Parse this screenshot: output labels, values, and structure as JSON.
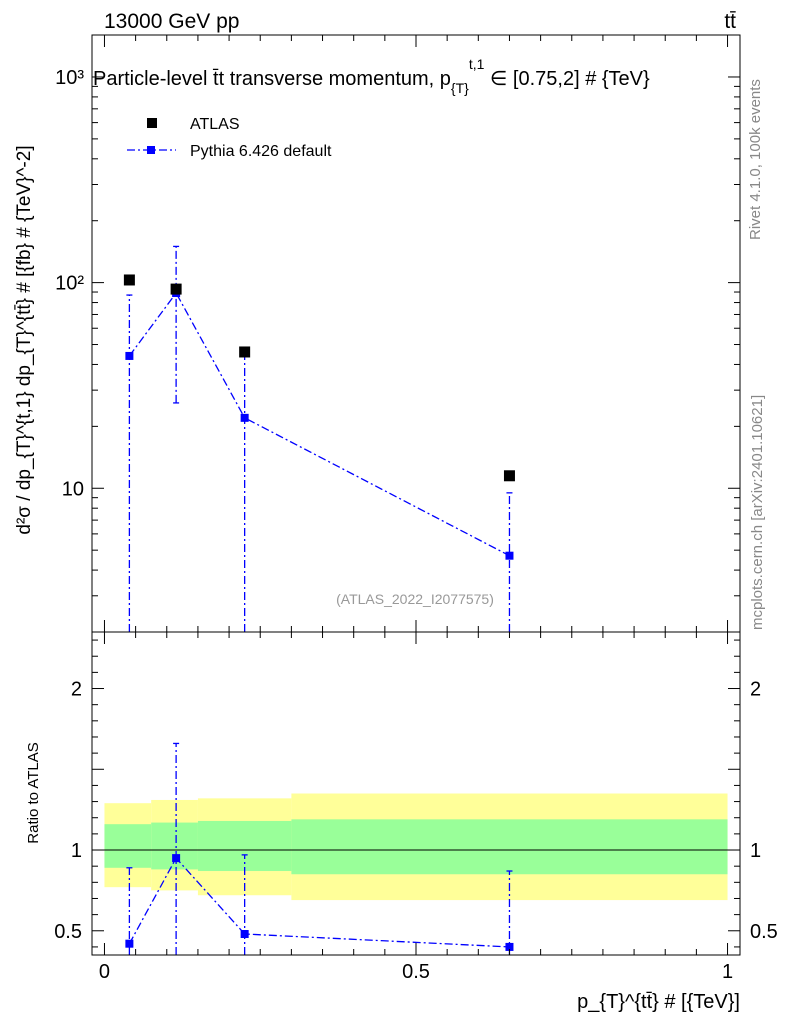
{
  "header": {
    "energy_label": "13000 GeV pp",
    "process_label": "tt̄"
  },
  "colors": {
    "mc": "#0000ff",
    "data": "#000000",
    "band_inner": "#99ff99",
    "band_outer": "#ffff99",
    "side_text": "#888888"
  },
  "side_labels": {
    "rivet": "Rivet 4.1.0,  100k events",
    "mcplots": "mcplots.cern.ch [arXiv:2401.10621]"
  },
  "chart_data": [
    {
      "type": "scatter",
      "panel": "main",
      "title": "Particle-level t̄t transverse momentum, p_{T}^{t,1} ∈ [0.75,2] # {TeV}",
      "ylabel": "d²σ / dp_{T}^{t,1} dp_{T}^{tt̄} # [{fb} # {TeV}^-2]",
      "yscale": "log",
      "ylim": [
        2,
        1600
      ],
      "xlim": [
        -0.02,
        1.02
      ],
      "yticks": [
        {
          "value": 10,
          "label": "10"
        },
        {
          "value": 100,
          "label": "10²"
        },
        {
          "value": 1000,
          "label": "10³"
        }
      ],
      "legend": [
        "ATLAS",
        "Pythia 6.426 default"
      ],
      "watermark": "(ATLAS_2022_I2077575)",
      "series": [
        {
          "name": "ATLAS",
          "style": "square-marker",
          "x": [
            0.04,
            0.115,
            0.225,
            0.65
          ],
          "y": [
            103,
            93,
            46,
            11.5
          ]
        },
        {
          "name": "Pythia 6.426 default",
          "style": "dash-dot-line",
          "x": [
            0.04,
            0.115,
            0.225,
            0.65
          ],
          "y": [
            44,
            89,
            22,
            4.7
          ],
          "yerr_low": [
            44,
            63,
            22,
            4.7
          ],
          "yerr_high": [
            43,
            61,
            23,
            4.8
          ]
        }
      ]
    },
    {
      "type": "line",
      "panel": "ratio",
      "ylabel": "Ratio to ATLAS",
      "xlabel": "p_{T}^{tt̄} # [{TeV}]",
      "ylim": [
        0.35,
        2.35
      ],
      "xlim": [
        -0.02,
        1.02
      ],
      "xticks": [
        {
          "value": 0,
          "label": "0"
        },
        {
          "value": 0.5,
          "label": "0.5"
        },
        {
          "value": 1,
          "label": "1"
        }
      ],
      "yticks": [
        {
          "value": 0.5,
          "label": "0.5"
        },
        {
          "value": 1,
          "label": "1"
        },
        {
          "value": 2,
          "label": "2"
        }
      ],
      "bands": [
        {
          "x0": 0.0,
          "x1": 0.075,
          "outer": [
            0.77,
            1.29
          ],
          "inner": [
            0.89,
            1.16
          ]
        },
        {
          "x0": 0.075,
          "x1": 0.15,
          "outer": [
            0.75,
            1.31
          ],
          "inner": [
            0.88,
            1.17
          ]
        },
        {
          "x0": 0.15,
          "x1": 0.3,
          "outer": [
            0.72,
            1.32
          ],
          "inner": [
            0.87,
            1.18
          ]
        },
        {
          "x0": 0.3,
          "x1": 1.0,
          "outer": [
            0.69,
            1.35
          ],
          "inner": [
            0.85,
            1.19
          ]
        }
      ],
      "series": [
        {
          "name": "Pythia 6.426 default",
          "x": [
            0.04,
            0.115,
            0.225,
            0.65
          ],
          "y": [
            0.42,
            0.95,
            0.48,
            0.4
          ],
          "yerr_low": [
            0.42,
            0.6,
            0.48,
            0.4
          ],
          "yerr_high": [
            0.47,
            0.71,
            0.49,
            0.47
          ]
        }
      ]
    }
  ]
}
